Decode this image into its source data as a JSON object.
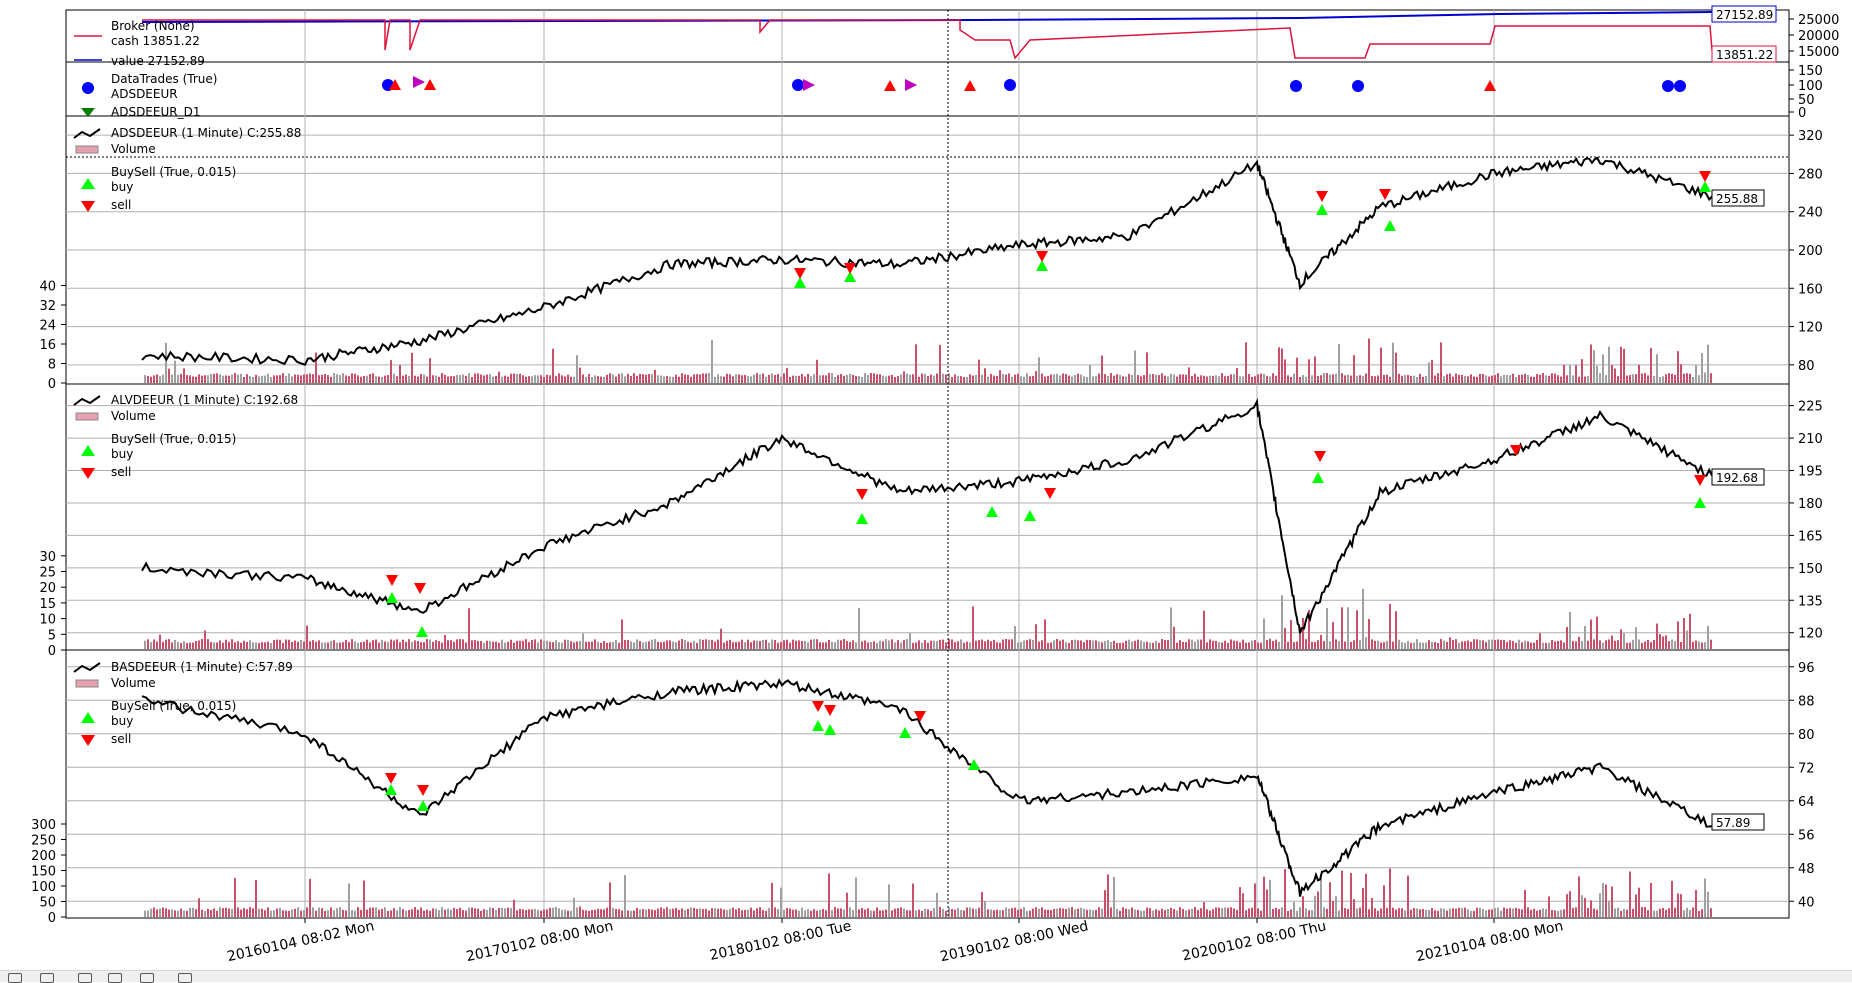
{
  "x_ticks": [
    "20160104 08:02 Mon",
    "20170102 08:00 Mon",
    "20180102 08:00 Tue",
    "20190102 08:00 Wed",
    "20200102 08:00 Thu",
    "20210104 08:00 Mon"
  ],
  "broker_panel": {
    "legend": [
      "Broker (None)",
      "cash 13851.22",
      "value 27152.89"
    ],
    "right_ticks": [
      25000,
      20000,
      15000
    ],
    "value_label": "27152.89",
    "cash_label": "13851.22",
    "colors": {
      "cash": "#dc143c",
      "value": "#0000cd"
    }
  },
  "trades_panel": {
    "legend": [
      "DataTrades (True)",
      "ADSDEEUR",
      "ADSDEEUR_D1"
    ],
    "right_ticks": [
      150,
      100,
      50,
      0
    ],
    "colors": {
      "blue": "#0000ff",
      "red": "#ff0000",
      "magenta": "#bf00bf",
      "green": "#008000"
    }
  },
  "panels": [
    {
      "legend_title": "ADSDEEUR (1 Minute) C:255.88",
      "legend_volume": "Volume",
      "legend_buysell": "BuySell (True, 0.015)",
      "legend_buy": "buy",
      "legend_sell": "sell",
      "last_label": "255.88",
      "right_ticks": [
        320,
        280,
        240,
        200,
        160,
        120,
        80
      ],
      "left_ticks": [
        40,
        32,
        24,
        16,
        8,
        0
      ]
    },
    {
      "legend_title": "ALVDEEUR (1 Minute) C:192.68",
      "legend_volume": "Volume",
      "legend_buysell": "BuySell (True, 0.015)",
      "legend_buy": "buy",
      "legend_sell": "sell",
      "last_label": "192.68",
      "right_ticks": [
        225,
        210,
        195,
        180,
        165,
        150,
        135,
        120
      ],
      "left_ticks": [
        30,
        25,
        20,
        15,
        10,
        5,
        0
      ]
    },
    {
      "legend_title": "BASDEEUR (1 Minute) C:57.89",
      "legend_volume": "Volume",
      "legend_buysell": "BuySell (True, 0.015)",
      "legend_buy": "buy",
      "legend_sell": "sell",
      "last_label": "57.89",
      "right_ticks": [
        96,
        88,
        80,
        72,
        64,
        56,
        48,
        40
      ],
      "left_ticks": [
        300,
        250,
        200,
        150,
        100,
        50,
        0
      ]
    }
  ],
  "chart_data": {
    "type": "line",
    "x_labels": [
      "20160104 08:02 Mon",
      "20170102 08:00 Mon",
      "20180102 08:00 Tue",
      "20190102 08:00 Wed",
      "20200102 08:00 Thu",
      "20210104 08:00 Mon"
    ],
    "series": [
      {
        "name": "value",
        "values": [
          27152.89
        ]
      },
      {
        "name": "cash",
        "values": [
          13851.22
        ]
      },
      {
        "name": "ADSDEEUR (1 Minute)",
        "x": [
          "2015-11",
          "2016-01",
          "2016-06",
          "2017-01",
          "2017-06",
          "2018-01",
          "2018-06",
          "2019-01",
          "2019-06",
          "2020-01",
          "2020-03",
          "2020-06",
          "2021-01",
          "2021-06",
          "2021-12"
        ],
        "values": [
          90,
          85,
          105,
          140,
          185,
          190,
          185,
          205,
          215,
          290,
          165,
          245,
          280,
          295,
          255.88
        ]
      },
      {
        "name": "ALVDEEUR (1 Minute)",
        "x": [
          "2015-11",
          "2016-01",
          "2016-06",
          "2017-01",
          "2017-06",
          "2018-01",
          "2018-06",
          "2019-01",
          "2019-06",
          "2020-01",
          "2020-03",
          "2020-06",
          "2021-01",
          "2021-06",
          "2021-12"
        ],
        "values": [
          150,
          145,
          130,
          160,
          180,
          210,
          185,
          190,
          200,
          225,
          120,
          185,
          200,
          220,
          192.68
        ]
      },
      {
        "name": "BASDEEUR (1 Minute)",
        "x": [
          "2015-11",
          "2016-01",
          "2016-06",
          "2017-01",
          "2017-06",
          "2018-01",
          "2018-06",
          "2019-01",
          "2019-06",
          "2020-01",
          "2020-03",
          "2020-06",
          "2021-01",
          "2021-06",
          "2021-12"
        ],
        "values": [
          88,
          80,
          60,
          84,
          90,
          92,
          86,
          64,
          66,
          70,
          42,
          58,
          66,
          72,
          57.89
        ]
      }
    ]
  }
}
